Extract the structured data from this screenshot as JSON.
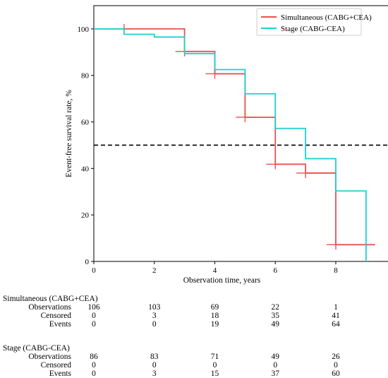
{
  "chart_data": {
    "type": "line",
    "step": true,
    "xlabel": "Observation time, years",
    "ylabel": "Event-free survival rate, %",
    "xlim": [
      0,
      10
    ],
    "ylim": [
      0,
      110
    ],
    "xticks": [
      "0",
      "2",
      "4",
      "6",
      "8"
    ],
    "yticks": [
      "0",
      "20",
      "40",
      "60",
      "80",
      "100"
    ],
    "grid": false,
    "legend": "top-right",
    "reference_line": {
      "y": 50,
      "style": "dashed",
      "color": "#000000"
    },
    "series": [
      {
        "name": "Simultaneous (CABG+CEA)",
        "color": "#e8514f",
        "steps": [
          [
            0,
            100
          ],
          [
            1,
            100
          ],
          [
            3,
            90.3
          ],
          [
            4,
            80.7
          ],
          [
            5,
            62
          ],
          [
            6,
            41.8
          ],
          [
            7,
            38
          ],
          [
            8,
            7.2
          ],
          [
            9.3,
            7.2
          ]
        ],
        "censored": [
          [
            1,
            100
          ],
          [
            3,
            90.3
          ],
          [
            4,
            80.7
          ],
          [
            5,
            62
          ],
          [
            6,
            41.8
          ],
          [
            7,
            38
          ],
          [
            8,
            7.2
          ]
        ]
      },
      {
        "name": "Stage (CABG-CEA)",
        "color": "#1fcfcf",
        "steps": [
          [
            0,
            100
          ],
          [
            1,
            97.7
          ],
          [
            2,
            96.5
          ],
          [
            3,
            89.4
          ],
          [
            4,
            82.5
          ],
          [
            5,
            72.1
          ],
          [
            6,
            57.2
          ],
          [
            7,
            44.2
          ],
          [
            8,
            30.3
          ],
          [
            9,
            0
          ]
        ],
        "censored": []
      }
    ]
  },
  "risk_table": {
    "ticks": [
      0,
      2,
      4,
      6,
      8
    ],
    "groups": [
      {
        "title": "Simultaneous (CABG+CEA)",
        "rows": [
          {
            "label": "Observations",
            "values": [
              "106",
              "103",
              "69",
              "22",
              "1"
            ]
          },
          {
            "label": "Censored",
            "values": [
              "0",
              "3",
              "18",
              "35",
              "41"
            ]
          },
          {
            "label": "Events",
            "values": [
              "0",
              "0",
              "19",
              "49",
              "64"
            ]
          }
        ]
      },
      {
        "title": "Stage (CABG-CEA)",
        "rows": [
          {
            "label": "Observations",
            "values": [
              "86",
              "83",
              "71",
              "49",
              "26"
            ]
          },
          {
            "label": "Censored",
            "values": [
              "0",
              "0",
              "0",
              "0",
              "0"
            ]
          },
          {
            "label": "Events",
            "values": [
              "0",
              "3",
              "15",
              "37",
              "60"
            ]
          }
        ]
      }
    ]
  }
}
